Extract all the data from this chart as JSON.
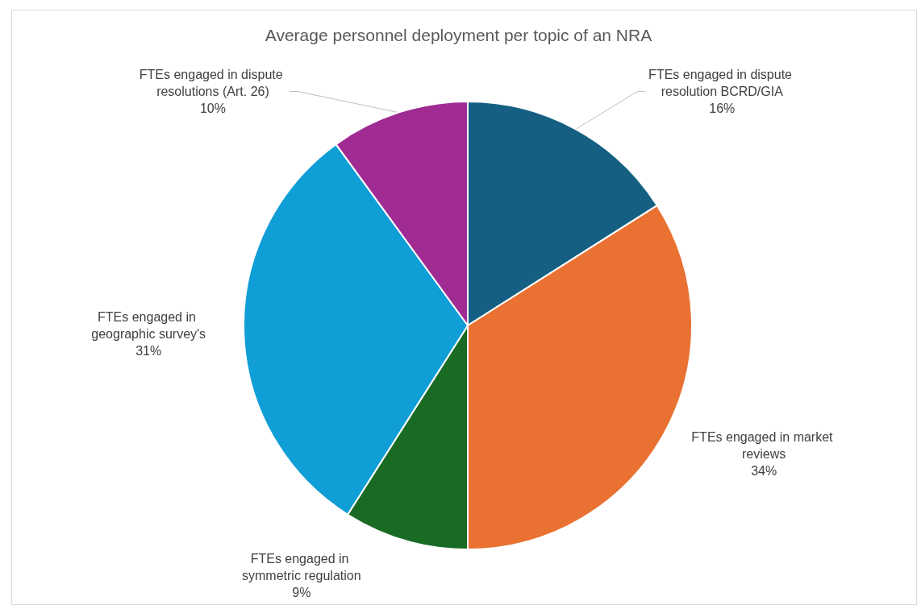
{
  "chart_data": {
    "type": "pie",
    "title": "Average personnel deployment per topic of an NRA",
    "categories": [
      "FTEs engaged in dispute resolution BCRD/GIA",
      "FTEs engaged in market reviews",
      "FTEs engaged in symmetric regulation",
      "FTEs engaged in geographic survey's",
      "FTEs engaged in dispute resolutions (Art. 26)"
    ],
    "values": [
      16,
      34,
      9,
      31,
      10
    ],
    "value_labels": [
      "16%",
      "34%",
      "9%",
      "31%",
      "10%"
    ],
    "colors": [
      "#156082",
      "#e97132",
      "#196b24",
      "#0f9ed5",
      "#a02b93"
    ]
  }
}
